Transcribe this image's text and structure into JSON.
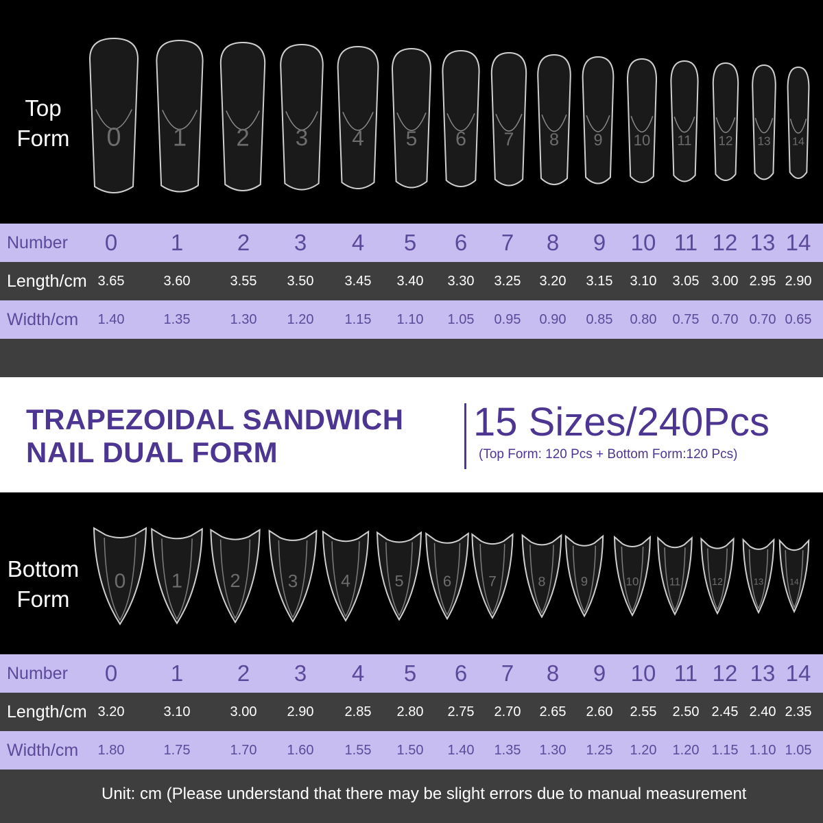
{
  "top": {
    "label_line1": "Top",
    "label_line2": "Form",
    "table": {
      "number_label": "Number",
      "length_label": "Length/cm",
      "width_label": "Width/cm",
      "numbers": [
        "0",
        "1",
        "2",
        "3",
        "4",
        "5",
        "6",
        "7",
        "8",
        "9",
        "10",
        "11",
        "12",
        "13",
        "14"
      ],
      "lengths": [
        "3.65",
        "3.60",
        "3.55",
        "3.50",
        "3.45",
        "3.40",
        "3.30",
        "3.25",
        "3.20",
        "3.15",
        "3.10",
        "3.05",
        "3.00",
        "2.95",
        "2.90"
      ],
      "widths": [
        "1.40",
        "1.35",
        "1.30",
        "1.20",
        "1.15",
        "1.10",
        "1.05",
        "0.95",
        "0.90",
        "0.85",
        "0.80",
        "0.75",
        "0.70",
        "0.70",
        "0.65"
      ]
    }
  },
  "title": {
    "line1": "TRAPEZOIDAL SANDWICH",
    "line2": "NAIL DUAL FORM",
    "sizes": "15 Sizes/240Pcs",
    "pcs": "(Top Form: 120 Pcs + Bottom Form:120 Pcs)"
  },
  "bottom": {
    "label_line1": "Bottom",
    "label_line2": "Form",
    "table": {
      "number_label": "Number",
      "length_label": "Length/cm",
      "width_label": "Width/cm",
      "numbers": [
        "0",
        "1",
        "2",
        "3",
        "4",
        "5",
        "6",
        "7",
        "8",
        "9",
        "10",
        "11",
        "12",
        "13",
        "14"
      ],
      "lengths": [
        "3.20",
        "3.10",
        "3.00",
        "2.90",
        "2.85",
        "2.80",
        "2.75",
        "2.70",
        "2.65",
        "2.60",
        "2.55",
        "2.50",
        "2.45",
        "2.40",
        "2.35"
      ],
      "widths": [
        "1.80",
        "1.75",
        "1.70",
        "1.60",
        "1.55",
        "1.50",
        "1.40",
        "1.35",
        "1.30",
        "1.25",
        "1.20",
        "1.20",
        "1.15",
        "1.10",
        "1.05"
      ]
    }
  },
  "footer": {
    "unit_note": "Unit: cm (Please understand that there may be slight errors due to manual measurement"
  },
  "colors": {
    "purple_row": "#c7bdf1",
    "purple_text": "#5b4a9a",
    "title_text": "#4d3592",
    "dark_row": "#3e3e3e"
  }
}
